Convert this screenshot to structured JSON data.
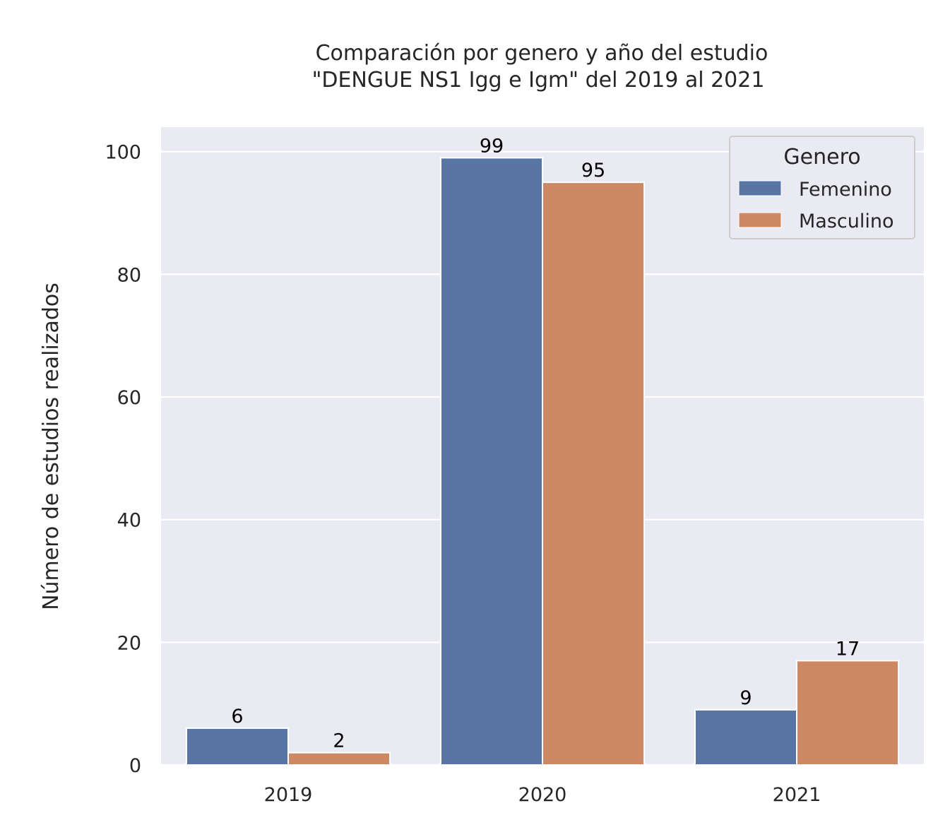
{
  "chart_data": {
    "type": "bar",
    "title_lines": [
      "Comparación por genero y año del estudio",
      "\"DENGUE NS1 Igg e Igm\"  del 2019 al 2021"
    ],
    "xlabel": "",
    "ylabel": "Número de estudios realizados",
    "categories": [
      "2019",
      "2020",
      "2021"
    ],
    "series": [
      {
        "name": "Femenino",
        "color": "#5975a4",
        "values": [
          6,
          99,
          9
        ]
      },
      {
        "name": "Masculino",
        "color": "#cc8963",
        "values": [
          2,
          95,
          17
        ]
      }
    ],
    "ylim": [
      0,
      104
    ],
    "yticks": [
      0,
      20,
      40,
      60,
      80,
      100
    ],
    "legend": {
      "title": "Genero",
      "placement": "top-right"
    },
    "grid": true,
    "background": "#eaeaf2"
  }
}
